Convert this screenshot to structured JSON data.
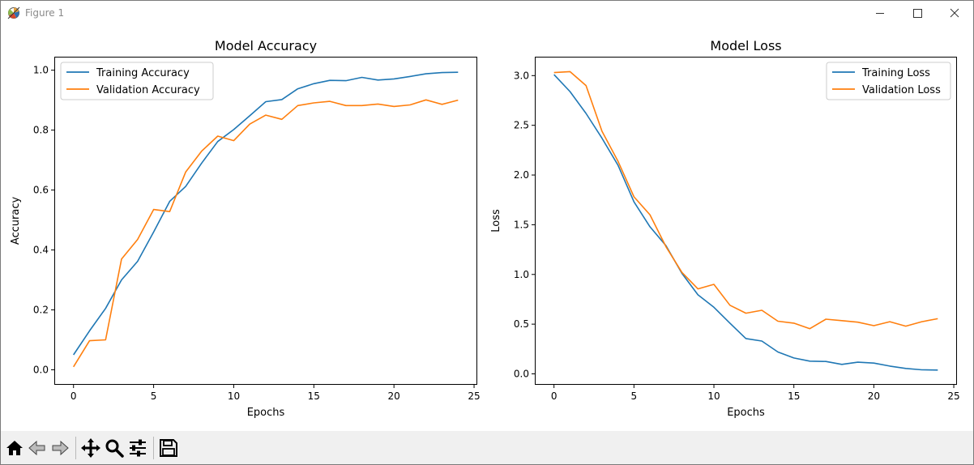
{
  "window": {
    "title": "Figure 1"
  },
  "toolbar": {
    "tools": [
      {
        "name": "home-button",
        "icon": "home-icon"
      },
      {
        "name": "back-button",
        "icon": "back-arrow-icon"
      },
      {
        "name": "forward-button",
        "icon": "forward-arrow-icon"
      },
      {
        "name": "pan-button",
        "icon": "pan-move-icon"
      },
      {
        "name": "zoom-button",
        "icon": "zoom-magnifier-icon"
      },
      {
        "name": "configure-subplots-button",
        "icon": "sliders-icon"
      },
      {
        "name": "save-button",
        "icon": "floppy-save-icon"
      }
    ]
  },
  "colors": {
    "training": "#1f77b4",
    "validation": "#ff7f0e"
  },
  "chart_data": [
    {
      "type": "line",
      "title": "Model Accuracy",
      "xlabel": "Epochs",
      "ylabel": "Accuracy",
      "xlim": [
        -1.2,
        25.2
      ],
      "ylim": [
        -0.05,
        1.045
      ],
      "xticks": [
        0,
        5,
        10,
        15,
        20,
        25
      ],
      "xtick_labels": [
        "0",
        "5",
        "10",
        "15",
        "20",
        "25"
      ],
      "yticks": [
        0.0,
        0.2,
        0.4,
        0.6,
        0.8,
        1.0
      ],
      "ytick_labels": [
        "0.0",
        "0.2",
        "0.4",
        "0.6",
        "0.8",
        "1.0"
      ],
      "legend": "upper-left",
      "grid": false,
      "x": [
        0,
        1,
        2,
        3,
        4,
        5,
        6,
        7,
        8,
        9,
        10,
        11,
        12,
        13,
        14,
        15,
        16,
        17,
        18,
        19,
        20,
        21,
        22,
        23,
        24
      ],
      "series": [
        {
          "name": "Training Accuracy",
          "color": "#1f77b4",
          "values": [
            0.05,
            0.13,
            0.205,
            0.3,
            0.362,
            0.46,
            0.562,
            0.612,
            0.69,
            0.762,
            0.802,
            0.848,
            0.895,
            0.902,
            0.938,
            0.955,
            0.966,
            0.965,
            0.976,
            0.967,
            0.971,
            0.979,
            0.988,
            0.992,
            0.993
          ]
        },
        {
          "name": "Validation Accuracy",
          "color": "#ff7f0e",
          "values": [
            0.01,
            0.097,
            0.1,
            0.37,
            0.435,
            0.535,
            0.528,
            0.66,
            0.73,
            0.78,
            0.765,
            0.82,
            0.85,
            0.836,
            0.882,
            0.891,
            0.896,
            0.882,
            0.882,
            0.887,
            0.879,
            0.884,
            0.901,
            0.886,
            0.9
          ]
        }
      ]
    },
    {
      "type": "line",
      "title": "Model Loss",
      "xlabel": "Epochs",
      "ylabel": "Loss",
      "xlim": [
        -1.2,
        25.2
      ],
      "ylim": [
        -0.11,
        3.19
      ],
      "xticks": [
        0,
        5,
        10,
        15,
        20,
        25
      ],
      "xtick_labels": [
        "0",
        "5",
        "10",
        "15",
        "20",
        "25"
      ],
      "yticks": [
        0.0,
        0.5,
        1.0,
        1.5,
        2.0,
        2.5,
        3.0
      ],
      "ytick_labels": [
        "0.0",
        "0.5",
        "1.0",
        "1.5",
        "2.0",
        "2.5",
        "3.0"
      ],
      "legend": "upper-right",
      "grid": false,
      "x": [
        0,
        1,
        2,
        3,
        4,
        5,
        6,
        7,
        8,
        9,
        10,
        11,
        12,
        13,
        14,
        15,
        16,
        17,
        18,
        19,
        20,
        21,
        22,
        23,
        24
      ],
      "series": [
        {
          "name": "Training Loss",
          "color": "#1f77b4",
          "values": [
            3.01,
            2.84,
            2.62,
            2.37,
            2.1,
            1.73,
            1.48,
            1.29,
            1.01,
            0.795,
            0.67,
            0.51,
            0.355,
            0.33,
            0.22,
            0.16,
            0.128,
            0.125,
            0.095,
            0.117,
            0.108,
            0.078,
            0.055,
            0.041,
            0.038
          ]
        },
        {
          "name": "Validation Loss",
          "color": "#ff7f0e",
          "values": [
            3.03,
            3.04,
            2.9,
            2.44,
            2.14,
            1.78,
            1.6,
            1.28,
            1.02,
            0.855,
            0.9,
            0.69,
            0.61,
            0.64,
            0.53,
            0.51,
            0.455,
            0.55,
            0.535,
            0.52,
            0.485,
            0.525,
            0.48,
            0.525,
            0.555
          ]
        }
      ]
    }
  ]
}
